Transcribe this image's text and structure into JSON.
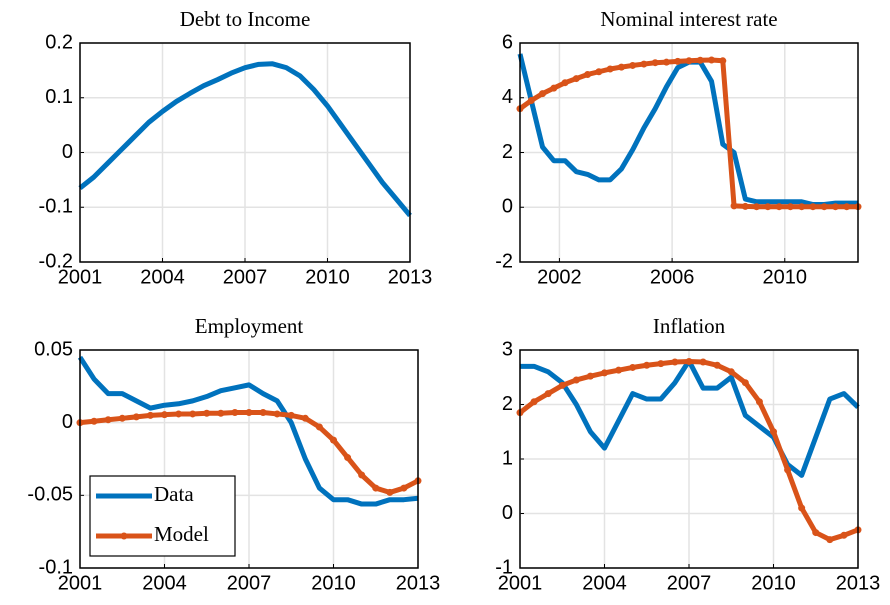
{
  "chart_data": [
    {
      "type": "line",
      "title": "Debt to Income",
      "x": [
        2001,
        2001.5,
        2002,
        2002.5,
        2003,
        2003.5,
        2004,
        2004.5,
        2005,
        2005.5,
        2006,
        2006.5,
        2007,
        2007.5,
        2008,
        2008.5,
        2009,
        2009.5,
        2010,
        2010.5,
        2011,
        2011.5,
        2012,
        2012.5,
        2013
      ],
      "xlim": [
        2001,
        2013
      ],
      "xticks": [
        2001,
        2004,
        2007,
        2010,
        2013
      ],
      "ylim": [
        -0.2,
        0.2
      ],
      "yticks": [
        -0.2,
        -0.1,
        0,
        0.1,
        0.2
      ],
      "grid": true,
      "series": [
        {
          "color": "#0072bd",
          "values": [
            -0.065,
            -0.045,
            -0.02,
            0.005,
            0.03,
            0.055,
            0.075,
            0.093,
            0.108,
            0.122,
            0.133,
            0.145,
            0.155,
            0.161,
            0.162,
            0.155,
            0.14,
            0.115,
            0.085,
            0.05,
            0.015,
            -0.02,
            -0.055,
            -0.085,
            -0.115
          ]
        }
      ]
    },
    {
      "type": "line",
      "title": "Nominal interest rate",
      "x": [
        2000.6,
        2001,
        2001.4,
        2001.8,
        2002.2,
        2002.6,
        2003,
        2003.4,
        2003.8,
        2004.2,
        2004.6,
        2005,
        2005.4,
        2005.8,
        2006.2,
        2006.6,
        2007,
        2007.4,
        2007.8,
        2008.2,
        2008.6,
        2009,
        2009.4,
        2009.8,
        2010.2,
        2010.6,
        2011,
        2011.4,
        2011.8,
        2012.2,
        2012.6
      ],
      "xlim": [
        2000.6,
        2012.6
      ],
      "xticks": [
        2002,
        2006,
        2010
      ],
      "ylim": [
        -2,
        6
      ],
      "yticks": [
        -2,
        0,
        2,
        4,
        6
      ],
      "grid": true,
      "series": [
        {
          "name": "Data",
          "color": "#0072bd",
          "values": [
            5.6,
            3.9,
            2.2,
            1.7,
            1.7,
            1.3,
            1.2,
            1.0,
            1.0,
            1.4,
            2.1,
            2.9,
            3.6,
            4.4,
            5.1,
            5.3,
            5.3,
            4.6,
            2.3,
            2.0,
            0.3,
            0.2,
            0.2,
            0.2,
            0.2,
            0.2,
            0.1,
            0.1,
            0.15,
            0.15,
            0.15
          ]
        },
        {
          "name": "Model",
          "color": "#d95319",
          "marker": "circle",
          "values": [
            3.6,
            3.9,
            4.15,
            4.35,
            4.55,
            4.7,
            4.85,
            4.95,
            5.05,
            5.12,
            5.18,
            5.23,
            5.28,
            5.3,
            5.33,
            5.35,
            5.37,
            5.38,
            5.35,
            0.05,
            0.03,
            0.02,
            0.02,
            0.02,
            0.02,
            0.02,
            0.02,
            0.02,
            0.02,
            0.02,
            0.02
          ]
        }
      ]
    },
    {
      "type": "line",
      "title": "Employment",
      "x": [
        2001,
        2001.5,
        2002,
        2002.5,
        2003,
        2003.5,
        2004,
        2004.5,
        2005,
        2005.5,
        2006,
        2006.5,
        2007,
        2007.5,
        2008,
        2008.5,
        2009,
        2009.5,
        2010,
        2010.5,
        2011,
        2011.5,
        2012,
        2012.5,
        2013
      ],
      "xlim": [
        2001,
        2013
      ],
      "xticks": [
        2001,
        2004,
        2007,
        2010,
        2013
      ],
      "ylim": [
        -0.1,
        0.05
      ],
      "yticks": [
        -0.1,
        -0.05,
        0,
        0.05
      ],
      "grid": true,
      "legend": "lower left",
      "series": [
        {
          "name": "Data",
          "color": "#0072bd",
          "values": [
            0.045,
            0.03,
            0.02,
            0.02,
            0.015,
            0.01,
            0.012,
            0.013,
            0.015,
            0.018,
            0.022,
            0.024,
            0.026,
            0.02,
            0.015,
            0.0,
            -0.025,
            -0.045,
            -0.053,
            -0.053,
            -0.056,
            -0.056,
            -0.053,
            -0.053,
            -0.052
          ]
        },
        {
          "name": "Model",
          "color": "#d95319",
          "marker": "circle",
          "values": [
            0,
            0.001,
            0.002,
            0.003,
            0.004,
            0.005,
            0.0055,
            0.006,
            0.006,
            0.0065,
            0.0065,
            0.007,
            0.007,
            0.007,
            0.006,
            0.005,
            0.003,
            -0.003,
            -0.012,
            -0.024,
            -0.036,
            -0.045,
            -0.048,
            -0.045,
            -0.04
          ]
        }
      ]
    },
    {
      "type": "line",
      "title": "Inflation",
      "x": [
        2001,
        2001.5,
        2002,
        2002.5,
        2003,
        2003.5,
        2004,
        2004.5,
        2005,
        2005.5,
        2006,
        2006.5,
        2007,
        2007.5,
        2008,
        2008.5,
        2009,
        2009.5,
        2010,
        2010.5,
        2011,
        2011.5,
        2012,
        2012.5,
        2013
      ],
      "xlim": [
        2001,
        2013
      ],
      "xticks": [
        2001,
        2004,
        2007,
        2010,
        2013
      ],
      "ylim": [
        -1,
        3
      ],
      "yticks": [
        -1,
        0,
        1,
        2,
        3
      ],
      "grid": true,
      "series": [
        {
          "name": "Data",
          "color": "#0072bd",
          "values": [
            2.7,
            2.7,
            2.6,
            2.4,
            2.0,
            1.5,
            1.2,
            1.7,
            2.2,
            2.1,
            2.1,
            2.4,
            2.8,
            2.3,
            2.3,
            2.5,
            1.8,
            1.6,
            1.4,
            0.9,
            0.7,
            1.4,
            2.1,
            2.2,
            1.95
          ]
        },
        {
          "name": "Model",
          "color": "#d95319",
          "marker": "circle",
          "values": [
            1.85,
            2.05,
            2.2,
            2.35,
            2.45,
            2.52,
            2.58,
            2.63,
            2.68,
            2.72,
            2.75,
            2.78,
            2.79,
            2.78,
            2.72,
            2.6,
            2.4,
            2.05,
            1.5,
            0.8,
            0.1,
            -0.35,
            -0.48,
            -0.4,
            -0.3
          ]
        }
      ]
    }
  ]
}
